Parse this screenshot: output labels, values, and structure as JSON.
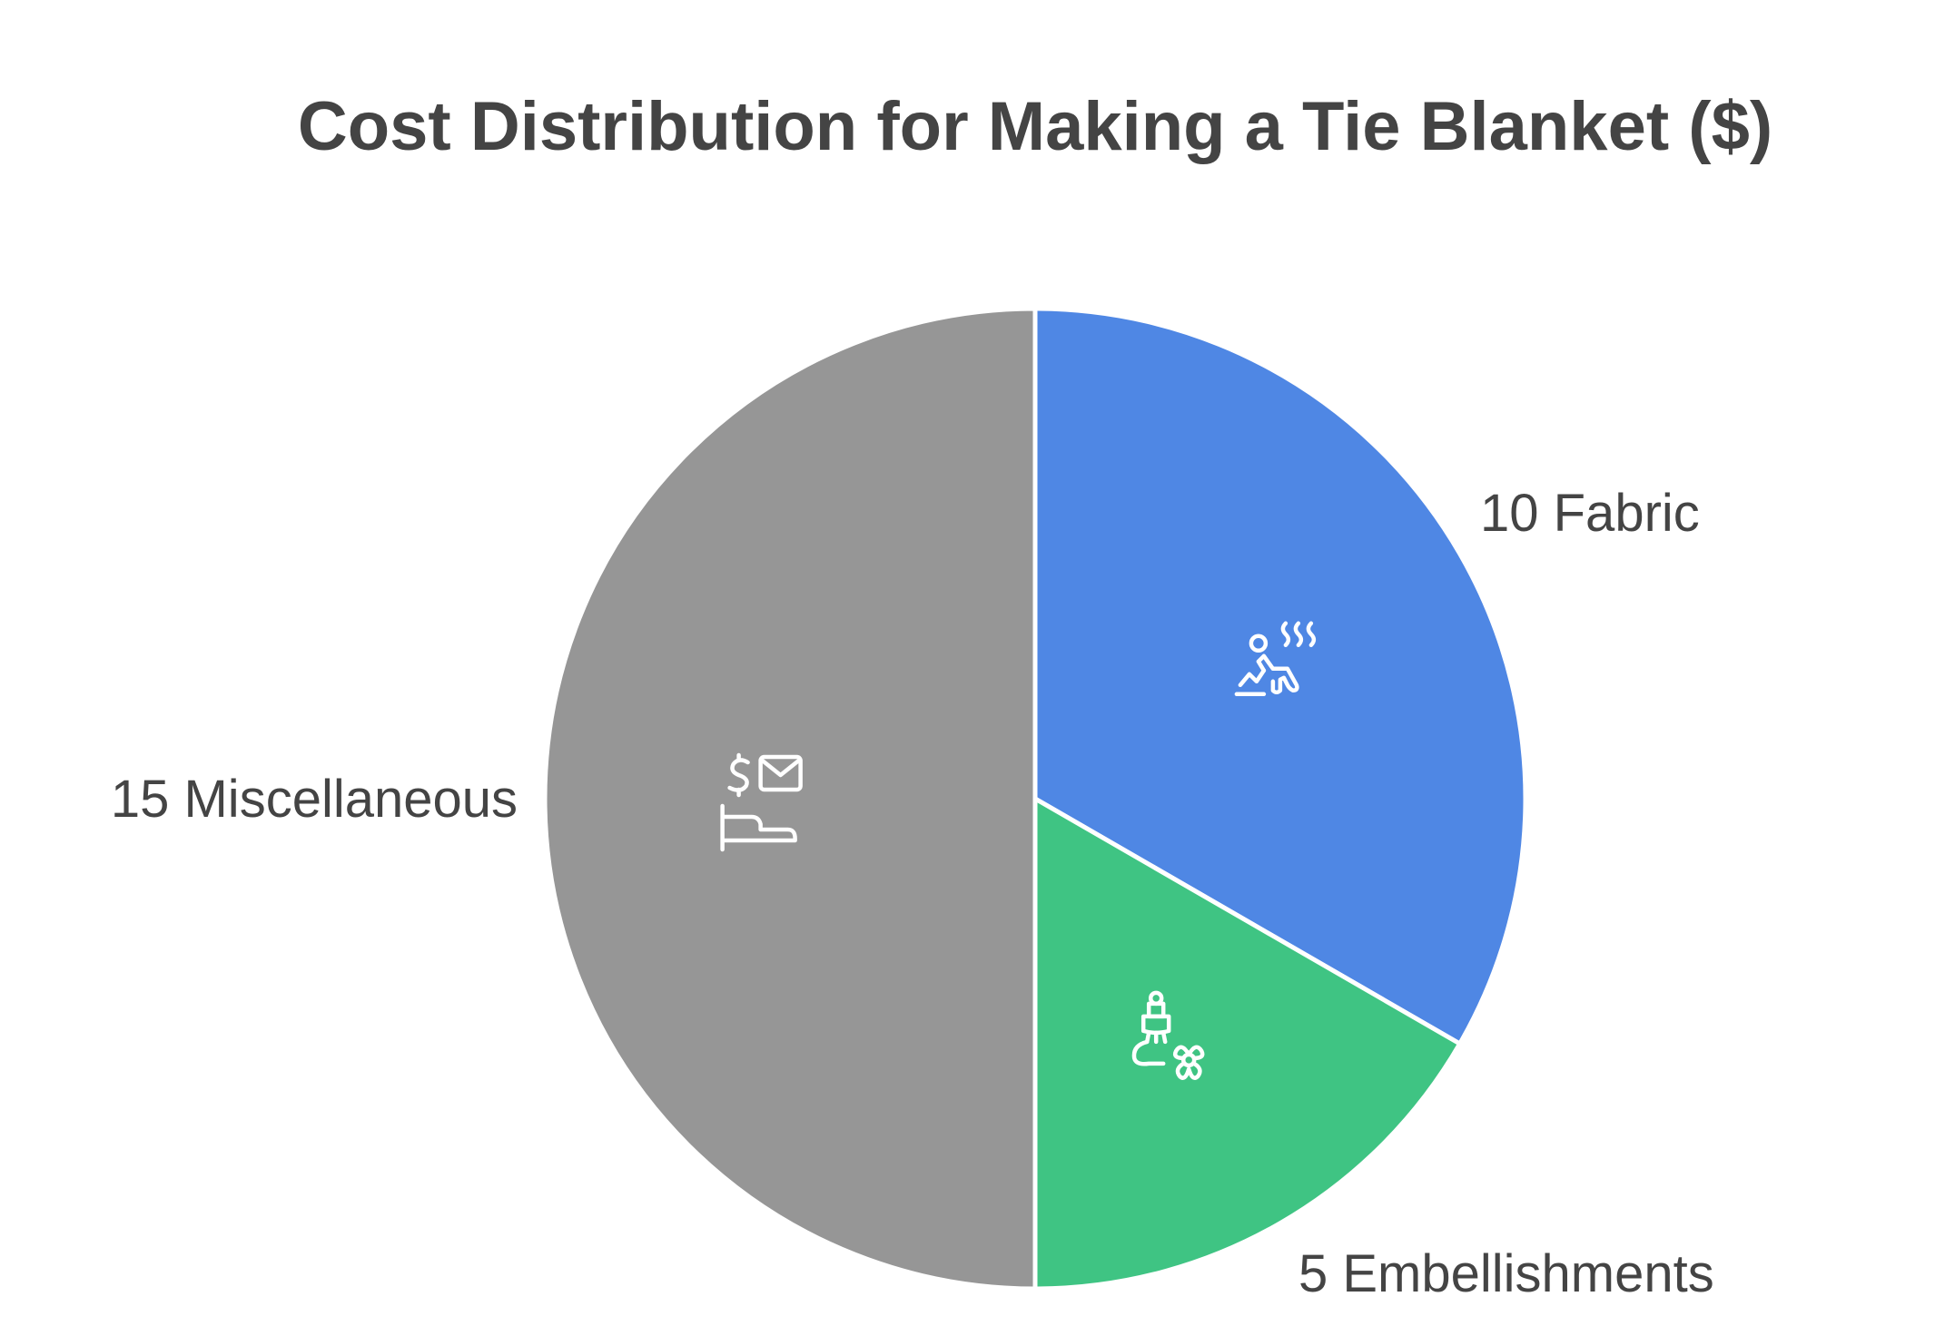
{
  "chart_data": {
    "type": "pie",
    "title": "Cost Distribution for Making a Tie Blanket ($)",
    "slices": [
      {
        "label": "10 Fabric",
        "value": 10,
        "color": "#4f87e4",
        "icon": "person-sauna-icon"
      },
      {
        "label": "5 Embellishments",
        "value": 5,
        "color": "#3fc483",
        "icon": "paintbrush-flower-icon"
      },
      {
        "label": "15 Miscellaneous",
        "value": 15,
        "color": "#969696",
        "icon": "hand-money-envelope-icon"
      }
    ]
  }
}
